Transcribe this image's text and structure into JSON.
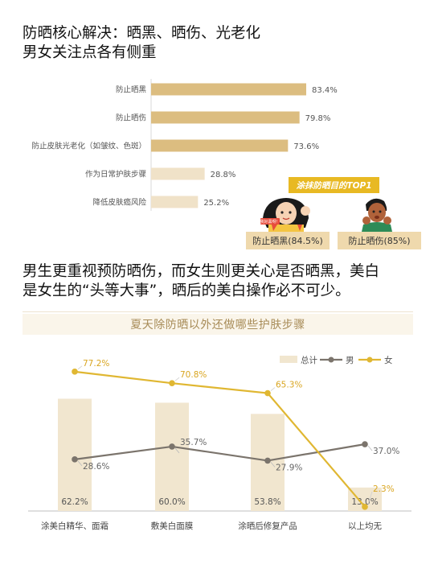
{
  "heading": {
    "line1": "防晒核心解决：晒黑、晒伤、光老化",
    "line2": "男女关注点各有侧重"
  },
  "paragraph": {
    "line1": "男生更重视预防晒伤，而女生则更关心是否晒黑，美白",
    "line2": "是女生的“头等大事”，晒后的美白操作必不可少。"
  },
  "chart_data": [
    {
      "type": "bar",
      "orientation": "horizontal",
      "categories": [
        "防止晒黑",
        "防止晒伤",
        "防止皮肤光老化（如皱纹、色斑）",
        "作为日常护肤步骤",
        "降低皮肤癌风险"
      ],
      "values": [
        83.4,
        79.8,
        73.6,
        28.8,
        25.2
      ],
      "value_labels": [
        "83.4%",
        "79.8%",
        "73.6%",
        "28.8%",
        "25.2%"
      ],
      "colors": [
        "#dcbd80",
        "#dcbd80",
        "#dcbd80",
        "#f0e2c8",
        "#f0e2c8"
      ],
      "callout": {
        "title": "涂抹防晒目的TOP1",
        "female_label": "防止晒黑(84.5%)",
        "male_label": "防止晒伤(85%)",
        "speech_bubble": "我好黑呀！"
      }
    },
    {
      "type": "bar+line",
      "title": "夏天除防晒以外还做哪些护肤步骤",
      "categories": [
        "涂美白精华、面霜",
        "敷美白面膜",
        "涂晒后修复产品",
        "以上均无"
      ],
      "series": [
        {
          "name": "总计",
          "type": "bar",
          "color": "#f1e6cf",
          "values": [
            62.2,
            60.0,
            53.8,
            13.0
          ],
          "labels": [
            "62.2%",
            "60.0%",
            "53.8%",
            "13.0%"
          ]
        },
        {
          "name": "男",
          "type": "line",
          "color": "#7b746c",
          "values": [
            28.6,
            35.7,
            27.9,
            37.0
          ],
          "labels": [
            "28.6%",
            "35.7%",
            "27.9%",
            "37.0%"
          ]
        },
        {
          "name": "女",
          "type": "line",
          "color": "#e0b732",
          "values": [
            77.2,
            70.8,
            65.3,
            2.3
          ],
          "labels": [
            "77.2%",
            "70.8%",
            "65.3%",
            "2.3%"
          ]
        }
      ],
      "ylim": [
        0,
        90
      ],
      "legend": "top-right",
      "grid": false
    }
  ]
}
